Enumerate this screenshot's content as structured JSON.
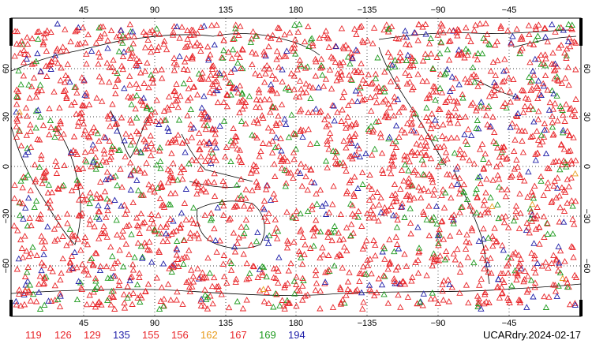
{
  "map": {
    "top_lon_labels": [
      "45",
      "90",
      "135",
      "180",
      "−135",
      "−90",
      "−45"
    ],
    "bottom_lon_labels": [
      "45",
      "90",
      "135",
      "180",
      "−135",
      "−90",
      "−45"
    ],
    "lat_labels": [
      "60",
      "30",
      "0",
      "−30",
      "−60"
    ],
    "colors": {
      "119": "#e8262a",
      "126": "#e8262a",
      "129": "#e8262a",
      "135": "#1f1fa8",
      "155": "#e8262a",
      "156": "#e8262a",
      "162": "#e89b1b",
      "167": "#e8262a",
      "169": "#1e9a1e",
      "194": "#1f1fa8"
    }
  },
  "legend": {
    "items": [
      {
        "label": "119",
        "color": "#e8262a"
      },
      {
        "label": "126",
        "color": "#e8262a"
      },
      {
        "label": "129",
        "color": "#e8262a"
      },
      {
        "label": "135",
        "color": "#1f1fa8"
      },
      {
        "label": "155",
        "color": "#e8262a"
      },
      {
        "label": "156",
        "color": "#e8262a"
      },
      {
        "label": "162",
        "color": "#e89b1b"
      },
      {
        "label": "167",
        "color": "#e8262a"
      },
      {
        "label": "169",
        "color": "#1e9a1e"
      },
      {
        "label": "194",
        "color": "#1f1fa8"
      }
    ]
  },
  "product_label": "UCARdry.2024-02-17"
}
